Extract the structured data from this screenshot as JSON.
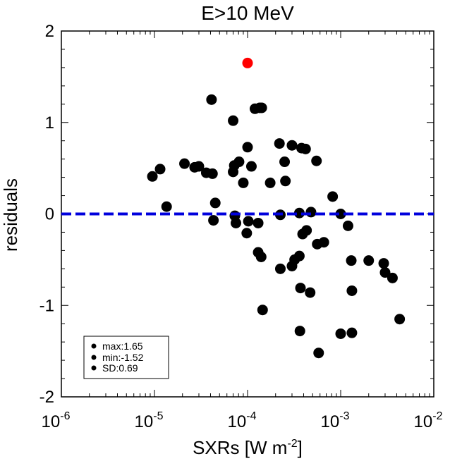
{
  "chart_data": {
    "type": "scatter",
    "title": "E>10 MeV",
    "xlabel": {
      "main": "SXRs [W m",
      "exp": "-2",
      "close": "]"
    },
    "ylabel": "residuals",
    "xscale": "log",
    "xlim": [
      1e-06,
      0.01
    ],
    "ylim": [
      -2,
      2
    ],
    "x_ticks": [
      {
        "base": "10",
        "exp": "-6",
        "value": 1e-06
      },
      {
        "base": "10",
        "exp": "-5",
        "value": 1e-05
      },
      {
        "base": "10",
        "exp": "-4",
        "value": 0.0001
      },
      {
        "base": "10",
        "exp": "-3",
        "value": 0.001
      },
      {
        "base": "10",
        "exp": "-2",
        "value": 0.01
      }
    ],
    "y_ticks": [
      {
        "label": "2",
        "value": 2
      },
      {
        "label": "1",
        "value": 1
      },
      {
        "label": "0",
        "value": 0
      },
      {
        "label": "-1",
        "value": -1
      },
      {
        "label": "-2",
        "value": -2
      }
    ],
    "reference_line": {
      "y": 0,
      "color": "#0000dd",
      "style": "dashed"
    },
    "highlight": {
      "x": 0.0001,
      "y": 1.65,
      "color": "#ff0000"
    },
    "point_color": "#000000",
    "points": [
      [
        9.5e-06,
        0.41
      ],
      [
        1.15e-05,
        0.49
      ],
      [
        1.35e-05,
        0.08
      ],
      [
        2.1e-05,
        0.55
      ],
      [
        2.7e-05,
        0.51
      ],
      [
        3e-05,
        0.52
      ],
      [
        3.6e-05,
        0.45
      ],
      [
        4.1e-05,
        1.25
      ],
      [
        4.2e-05,
        0.44
      ],
      [
        4.3e-05,
        -0.07
      ],
      [
        4.5e-05,
        0.12
      ],
      [
        7e-05,
        1.02
      ],
      [
        7e-05,
        0.46
      ],
      [
        7.2e-05,
        0.53
      ],
      [
        7.3e-05,
        -0.02
      ],
      [
        7.5e-05,
        -0.1
      ],
      [
        8.1e-05,
        0.57
      ],
      [
        9e-05,
        0.34
      ],
      [
        9.8e-05,
        -0.21
      ],
      [
        0.0001,
        0.73
      ],
      [
        0.000102,
        -0.08
      ],
      [
        0.00011,
        0.52
      ],
      [
        0.00012,
        1.15
      ],
      [
        0.00013,
        -0.1
      ],
      [
        0.00013,
        -0.42
      ],
      [
        0.000135,
        1.16
      ],
      [
        0.00014,
        -0.47
      ],
      [
        0.000142,
        1.16
      ],
      [
        0.000145,
        -1.05
      ],
      [
        0.000175,
        0.34
      ],
      [
        0.00022,
        0.77
      ],
      [
        0.000225,
        -0.6
      ],
      [
        0.000225,
        -0.01
      ],
      [
        0.00025,
        0.57
      ],
      [
        0.000255,
        0.36
      ],
      [
        0.0003,
        0.75
      ],
      [
        0.0003,
        -0.57
      ],
      [
        0.00032,
        -0.5
      ],
      [
        0.00036,
        0.01
      ],
      [
        0.00036,
        -0.46
      ],
      [
        0.000365,
        -1.28
      ],
      [
        0.00037,
        -0.81
      ],
      [
        0.00038,
        0.72
      ],
      [
        0.00039,
        -0.22
      ],
      [
        0.00042,
        0.71
      ],
      [
        0.00043,
        -0.18
      ],
      [
        0.00047,
        -0.86
      ],
      [
        0.00048,
        0.02
      ],
      [
        0.00055,
        0.58
      ],
      [
        0.00056,
        -0.33
      ],
      [
        0.00058,
        -1.52
      ],
      [
        0.00066,
        -0.31
      ],
      [
        0.00082,
        0.19
      ],
      [
        0.001,
        0.0
      ],
      [
        0.001,
        -1.31
      ],
      [
        0.0012,
        -0.13
      ],
      [
        0.0013,
        -0.51
      ],
      [
        0.00132,
        -1.3
      ],
      [
        0.00132,
        -0.84
      ],
      [
        0.002,
        -0.51
      ],
      [
        0.0029,
        -0.54
      ],
      [
        0.003,
        -0.64
      ],
      [
        0.0036,
        -0.7
      ],
      [
        0.0043,
        -1.15
      ]
    ],
    "legend": {
      "placement": "bottom-left",
      "entries": [
        "max:1.65",
        "min:-1.52",
        "SD:0.69"
      ]
    }
  }
}
